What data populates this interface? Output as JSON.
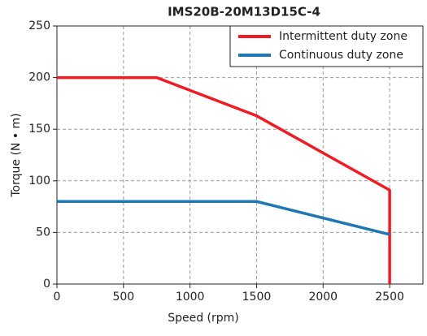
{
  "chart_data": {
    "type": "line",
    "title": "IMS20B-20M13D15C-4",
    "x_label": "Speed (rpm)",
    "y_label": "Torque (N • m)",
    "xlim": [
      0,
      2750
    ],
    "ylim": [
      0,
      250
    ],
    "xticks": [
      0,
      500,
      1000,
      1500,
      2000,
      2500
    ],
    "yticks": [
      0,
      50,
      100,
      150,
      200,
      250
    ],
    "grid": true,
    "legend": "upper right",
    "series": [
      {
        "name": "Intermittent duty zone",
        "color": "#ee1c25",
        "x": [
          0,
          750,
          1500,
          2500,
          2500
        ],
        "values": [
          200,
          200,
          163,
          91,
          0
        ]
      },
      {
        "name": "Continuous duty zone",
        "color": "#1f77b4",
        "x": [
          0,
          1500,
          2500
        ],
        "values": [
          80,
          80,
          48
        ]
      }
    ]
  }
}
